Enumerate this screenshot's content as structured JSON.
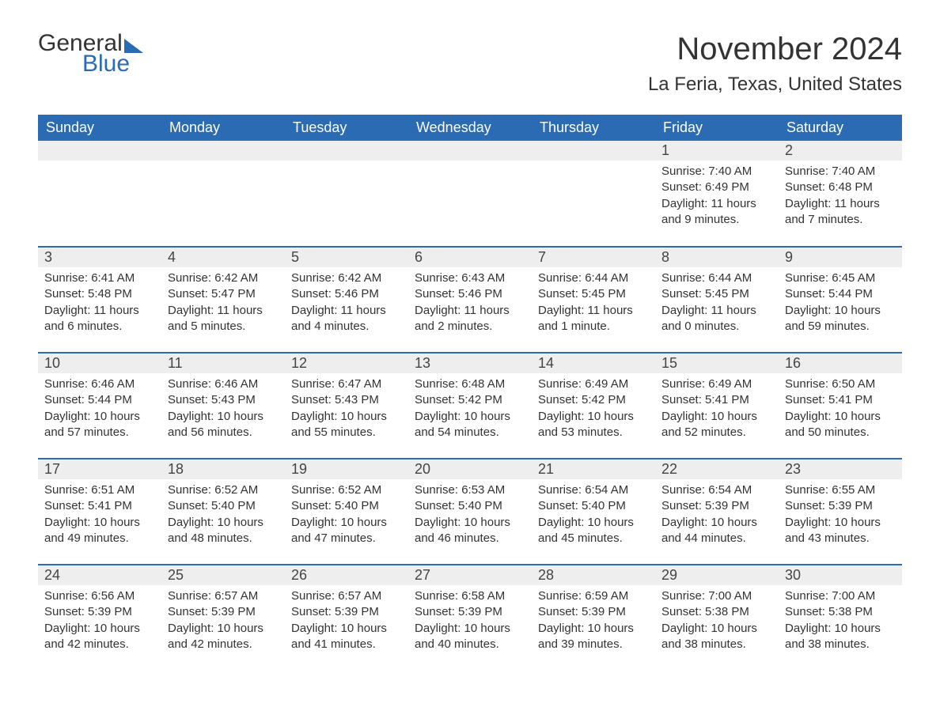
{
  "brand": {
    "word1": "General",
    "word2": "Blue",
    "accent_color": "#2a6bb4"
  },
  "title": "November 2024",
  "location": "La Feria, Texas, United States",
  "columns": [
    "Sunday",
    "Monday",
    "Tuesday",
    "Wednesday",
    "Thursday",
    "Friday",
    "Saturday"
  ],
  "style": {
    "header_bg": "#2a6bb4",
    "header_text": "#ffffff",
    "daynum_bg": "#eeeeee",
    "row_divider": "#2a6bb4",
    "body_text": "#333333",
    "font_family": "Arial",
    "month_title_fontsize": 40,
    "location_fontsize": 24,
    "header_fontsize": 18,
    "daynum_fontsize": 18,
    "cell_fontsize": 15
  },
  "weeks": [
    [
      {
        "day": "",
        "sunrise": "",
        "sunset": "",
        "daylight": ""
      },
      {
        "day": "",
        "sunrise": "",
        "sunset": "",
        "daylight": ""
      },
      {
        "day": "",
        "sunrise": "",
        "sunset": "",
        "daylight": ""
      },
      {
        "day": "",
        "sunrise": "",
        "sunset": "",
        "daylight": ""
      },
      {
        "day": "",
        "sunrise": "",
        "sunset": "",
        "daylight": ""
      },
      {
        "day": "1",
        "sunrise": "Sunrise: 7:40 AM",
        "sunset": "Sunset: 6:49 PM",
        "daylight": "Daylight: 11 hours and 9 minutes."
      },
      {
        "day": "2",
        "sunrise": "Sunrise: 7:40 AM",
        "sunset": "Sunset: 6:48 PM",
        "daylight": "Daylight: 11 hours and 7 minutes."
      }
    ],
    [
      {
        "day": "3",
        "sunrise": "Sunrise: 6:41 AM",
        "sunset": "Sunset: 5:48 PM",
        "daylight": "Daylight: 11 hours and 6 minutes."
      },
      {
        "day": "4",
        "sunrise": "Sunrise: 6:42 AM",
        "sunset": "Sunset: 5:47 PM",
        "daylight": "Daylight: 11 hours and 5 minutes."
      },
      {
        "day": "5",
        "sunrise": "Sunrise: 6:42 AM",
        "sunset": "Sunset: 5:46 PM",
        "daylight": "Daylight: 11 hours and 4 minutes."
      },
      {
        "day": "6",
        "sunrise": "Sunrise: 6:43 AM",
        "sunset": "Sunset: 5:46 PM",
        "daylight": "Daylight: 11 hours and 2 minutes."
      },
      {
        "day": "7",
        "sunrise": "Sunrise: 6:44 AM",
        "sunset": "Sunset: 5:45 PM",
        "daylight": "Daylight: 11 hours and 1 minute."
      },
      {
        "day": "8",
        "sunrise": "Sunrise: 6:44 AM",
        "sunset": "Sunset: 5:45 PM",
        "daylight": "Daylight: 11 hours and 0 minutes."
      },
      {
        "day": "9",
        "sunrise": "Sunrise: 6:45 AM",
        "sunset": "Sunset: 5:44 PM",
        "daylight": "Daylight: 10 hours and 59 minutes."
      }
    ],
    [
      {
        "day": "10",
        "sunrise": "Sunrise: 6:46 AM",
        "sunset": "Sunset: 5:44 PM",
        "daylight": "Daylight: 10 hours and 57 minutes."
      },
      {
        "day": "11",
        "sunrise": "Sunrise: 6:46 AM",
        "sunset": "Sunset: 5:43 PM",
        "daylight": "Daylight: 10 hours and 56 minutes."
      },
      {
        "day": "12",
        "sunrise": "Sunrise: 6:47 AM",
        "sunset": "Sunset: 5:43 PM",
        "daylight": "Daylight: 10 hours and 55 minutes."
      },
      {
        "day": "13",
        "sunrise": "Sunrise: 6:48 AM",
        "sunset": "Sunset: 5:42 PM",
        "daylight": "Daylight: 10 hours and 54 minutes."
      },
      {
        "day": "14",
        "sunrise": "Sunrise: 6:49 AM",
        "sunset": "Sunset: 5:42 PM",
        "daylight": "Daylight: 10 hours and 53 minutes."
      },
      {
        "day": "15",
        "sunrise": "Sunrise: 6:49 AM",
        "sunset": "Sunset: 5:41 PM",
        "daylight": "Daylight: 10 hours and 52 minutes."
      },
      {
        "day": "16",
        "sunrise": "Sunrise: 6:50 AM",
        "sunset": "Sunset: 5:41 PM",
        "daylight": "Daylight: 10 hours and 50 minutes."
      }
    ],
    [
      {
        "day": "17",
        "sunrise": "Sunrise: 6:51 AM",
        "sunset": "Sunset: 5:41 PM",
        "daylight": "Daylight: 10 hours and 49 minutes."
      },
      {
        "day": "18",
        "sunrise": "Sunrise: 6:52 AM",
        "sunset": "Sunset: 5:40 PM",
        "daylight": "Daylight: 10 hours and 48 minutes."
      },
      {
        "day": "19",
        "sunrise": "Sunrise: 6:52 AM",
        "sunset": "Sunset: 5:40 PM",
        "daylight": "Daylight: 10 hours and 47 minutes."
      },
      {
        "day": "20",
        "sunrise": "Sunrise: 6:53 AM",
        "sunset": "Sunset: 5:40 PM",
        "daylight": "Daylight: 10 hours and 46 minutes."
      },
      {
        "day": "21",
        "sunrise": "Sunrise: 6:54 AM",
        "sunset": "Sunset: 5:40 PM",
        "daylight": "Daylight: 10 hours and 45 minutes."
      },
      {
        "day": "22",
        "sunrise": "Sunrise: 6:54 AM",
        "sunset": "Sunset: 5:39 PM",
        "daylight": "Daylight: 10 hours and 44 minutes."
      },
      {
        "day": "23",
        "sunrise": "Sunrise: 6:55 AM",
        "sunset": "Sunset: 5:39 PM",
        "daylight": "Daylight: 10 hours and 43 minutes."
      }
    ],
    [
      {
        "day": "24",
        "sunrise": "Sunrise: 6:56 AM",
        "sunset": "Sunset: 5:39 PM",
        "daylight": "Daylight: 10 hours and 42 minutes."
      },
      {
        "day": "25",
        "sunrise": "Sunrise: 6:57 AM",
        "sunset": "Sunset: 5:39 PM",
        "daylight": "Daylight: 10 hours and 42 minutes."
      },
      {
        "day": "26",
        "sunrise": "Sunrise: 6:57 AM",
        "sunset": "Sunset: 5:39 PM",
        "daylight": "Daylight: 10 hours and 41 minutes."
      },
      {
        "day": "27",
        "sunrise": "Sunrise: 6:58 AM",
        "sunset": "Sunset: 5:39 PM",
        "daylight": "Daylight: 10 hours and 40 minutes."
      },
      {
        "day": "28",
        "sunrise": "Sunrise: 6:59 AM",
        "sunset": "Sunset: 5:39 PM",
        "daylight": "Daylight: 10 hours and 39 minutes."
      },
      {
        "day": "29",
        "sunrise": "Sunrise: 7:00 AM",
        "sunset": "Sunset: 5:38 PM",
        "daylight": "Daylight: 10 hours and 38 minutes."
      },
      {
        "day": "30",
        "sunrise": "Sunrise: 7:00 AM",
        "sunset": "Sunset: 5:38 PM",
        "daylight": "Daylight: 10 hours and 38 minutes."
      }
    ]
  ]
}
